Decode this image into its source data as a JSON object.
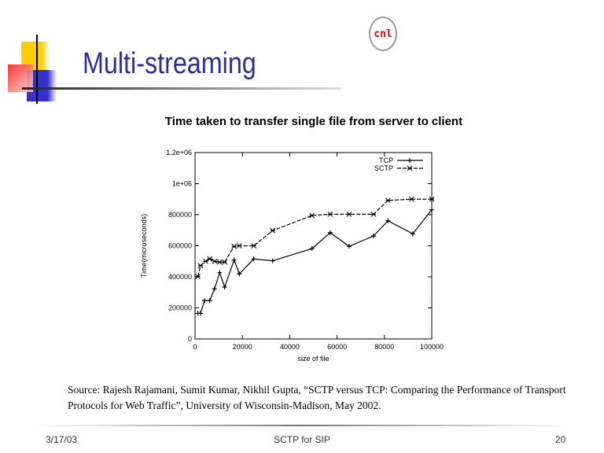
{
  "slide": {
    "title": "Multi-streaming",
    "logo_text": "cnl",
    "source": "Source: Rajesh Rajamani, Sumit Kumar, Nikhil Gupta, “SCTP versus TCP: Comparing the Performance of Transport Protocols for Web Traffic”, University of Wisconsin-Madison, May 2002.",
    "footer": {
      "date": "3/17/03",
      "center": "SCTP for SIP",
      "page": "20"
    }
  },
  "chart_data": {
    "type": "line",
    "title": "Time taken to transfer single file from server to client",
    "xlabel": "size of file",
    "ylabel": "Time(microseconds)",
    "xlim": [
      0,
      100000
    ],
    "ylim": [
      0,
      1200000
    ],
    "xticks": [
      "0",
      "20000",
      "40000",
      "60000",
      "80000",
      "100000"
    ],
    "yticks": [
      "0",
      "200000",
      "400000",
      "600000",
      "800000",
      "1e+06",
      "1.2e+06"
    ],
    "grid": false,
    "legend_position": "top-right",
    "series": [
      {
        "name": "TCP",
        "style": "solid",
        "marker": "+",
        "x": [
          1200,
          2300,
          4000,
          6200,
          8200,
          10400,
          12500,
          16500,
          18700,
          24800,
          32800,
          49400,
          57100,
          65100,
          75400,
          81500,
          92000,
          100000
        ],
        "y": [
          165000,
          165000,
          247000,
          247000,
          322000,
          427000,
          334000,
          508000,
          419000,
          515000,
          503000,
          582000,
          684000,
          596000,
          663000,
          761000,
          677000,
          832000
        ]
      },
      {
        "name": "SCTP",
        "style": "dashed",
        "marker": "x",
        "x": [
          1200,
          2300,
          4500,
          6200,
          8300,
          10400,
          12500,
          16500,
          18700,
          24800,
          32800,
          49400,
          57100,
          65100,
          75400,
          81500,
          91500,
          100000
        ],
        "y": [
          402000,
          472000,
          500000,
          516000,
          500000,
          495000,
          495000,
          596000,
          600000,
          600000,
          698000,
          795000,
          803000,
          803000,
          803000,
          892000,
          900000,
          900000
        ]
      }
    ]
  }
}
